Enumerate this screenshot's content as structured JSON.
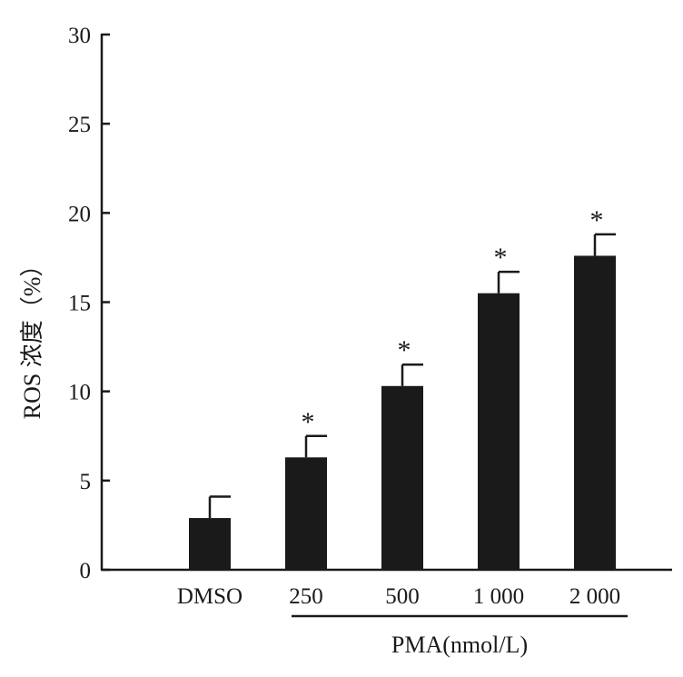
{
  "chart_data": {
    "type": "bar",
    "ylabel": "ROS 浓度（%）",
    "xlabel": "",
    "categories": [
      "DMSO",
      "250",
      "500",
      "1 000",
      "2 000"
    ],
    "values": [
      2.9,
      6.3,
      10.3,
      15.5,
      17.6
    ],
    "errors": [
      1.2,
      1.2,
      1.2,
      1.2,
      1.2
    ],
    "significance": [
      "",
      "*",
      "*",
      "*",
      "*"
    ],
    "ylim": [
      0,
      30
    ],
    "yticks": [
      0,
      5,
      10,
      15,
      20,
      25,
      30
    ],
    "group_label": "PMA(nmol/L)",
    "group_covers": [
      "250",
      "500",
      "1 000",
      "2 000"
    ],
    "grid": false,
    "legend": "none",
    "bar_color": "#1a1a1a"
  }
}
